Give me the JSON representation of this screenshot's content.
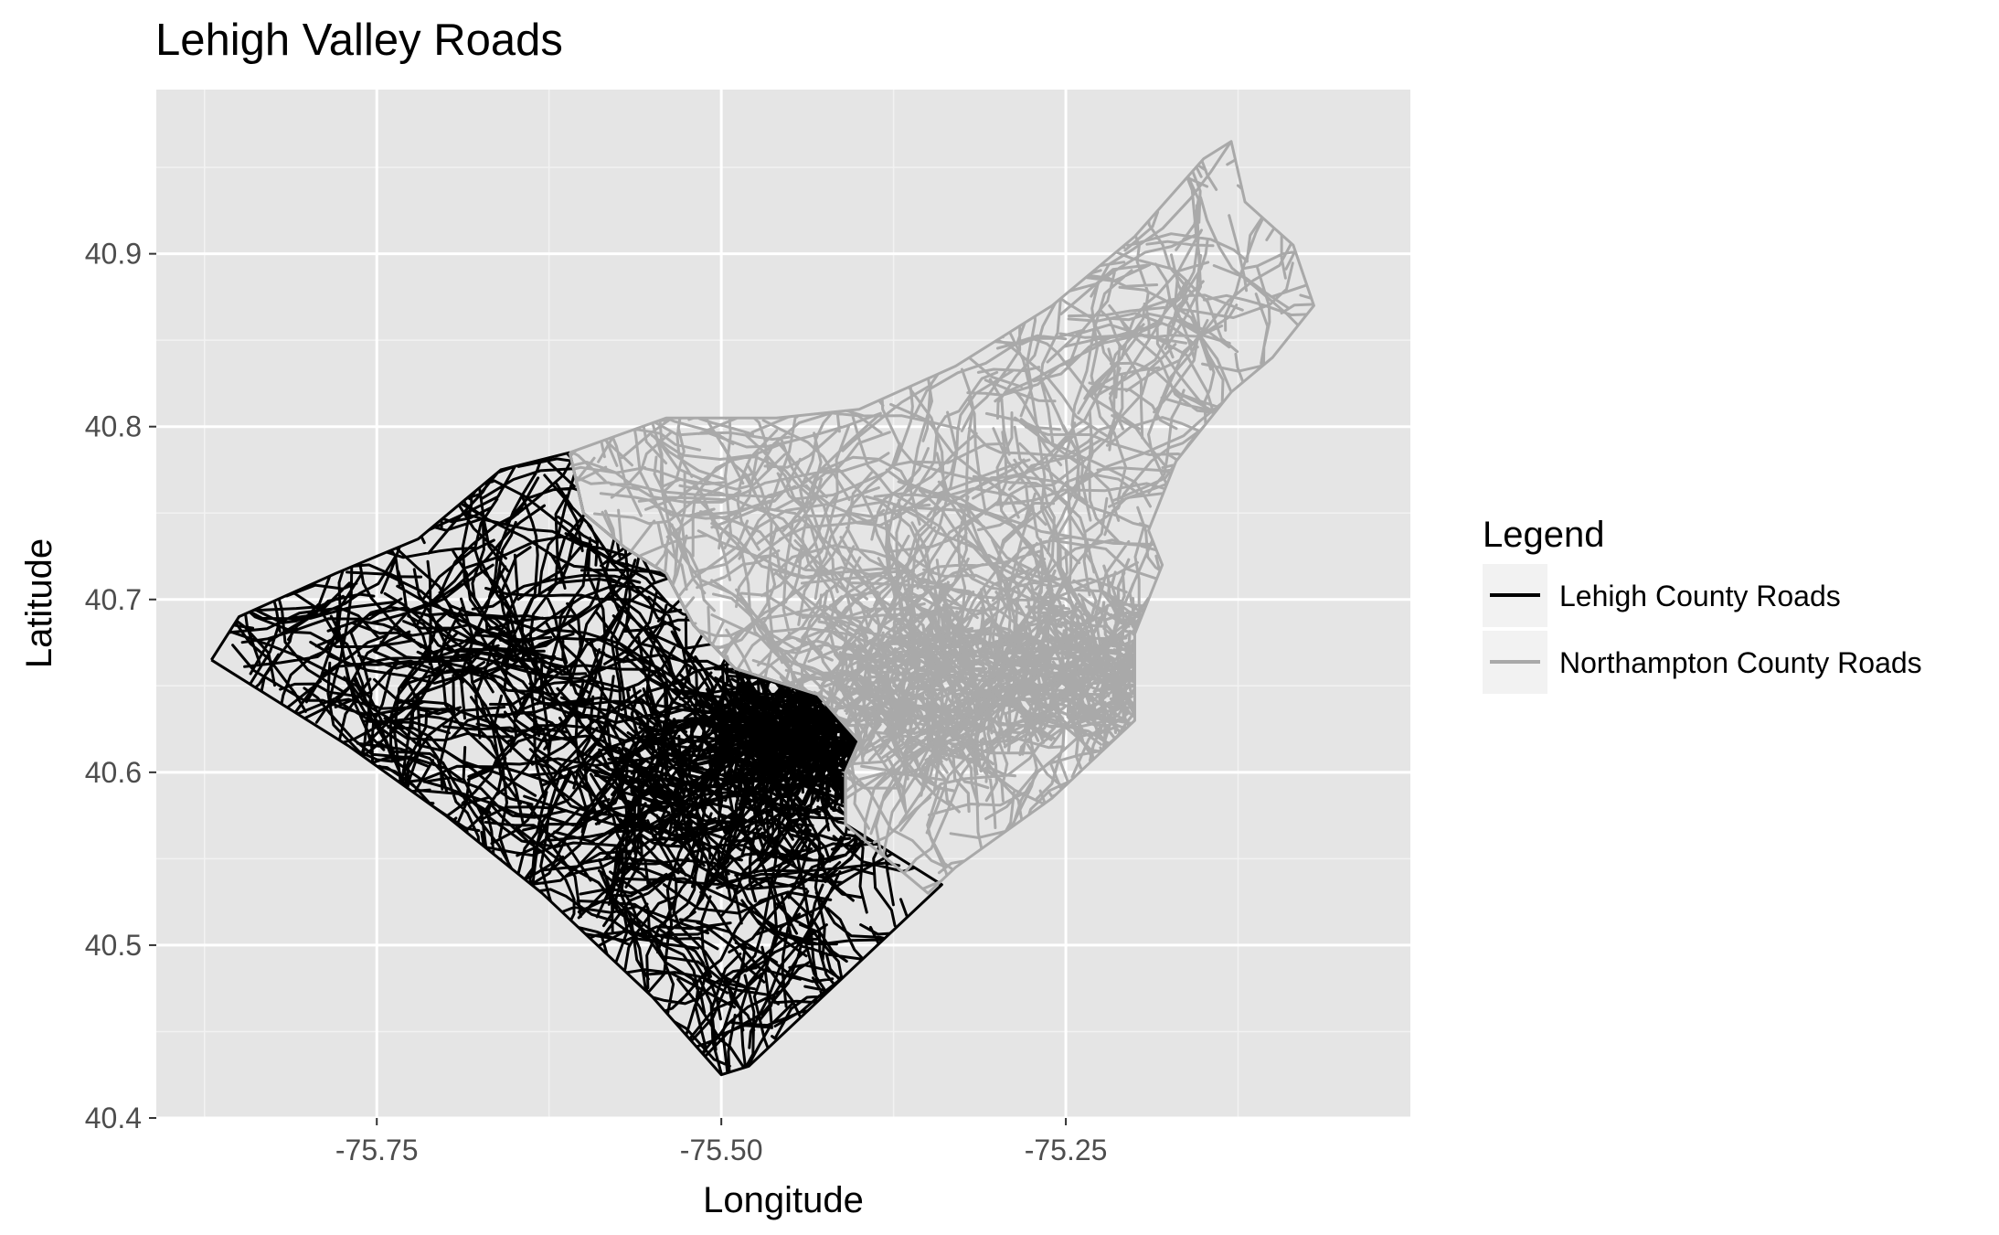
{
  "title": "Lehigh Valley Roads",
  "chart_data": {
    "type": "map",
    "title": "Lehigh Valley Roads",
    "xlabel": "Longitude",
    "ylabel": "Latitude",
    "xlim": [
      -75.91,
      -75.0
    ],
    "ylim": [
      40.4,
      40.995
    ],
    "x_ticks": [
      -75.75,
      -75.5,
      -75.25
    ],
    "x_tick_labels": [
      "-75.75",
      "-75.50",
      "-75.25"
    ],
    "x_minor": [
      -75.875,
      -75.625,
      -75.375,
      -75.125
    ],
    "y_ticks": [
      40.4,
      40.5,
      40.6,
      40.7,
      40.8,
      40.9
    ],
    "y_tick_labels": [
      "40.4",
      "40.5",
      "40.6",
      "40.7",
      "40.8",
      "40.9"
    ],
    "y_minor": [
      40.45,
      40.55,
      40.65,
      40.75,
      40.85,
      40.95
    ],
    "grid": true,
    "legend_position": "right",
    "legend": {
      "title": "Legend",
      "entries": [
        "Lehigh County Roads",
        "Northampton County Roads"
      ]
    },
    "series": [
      {
        "name": "Lehigh County Roads",
        "color": "#000000",
        "boundary": [
          [
            -75.87,
            40.665
          ],
          [
            -75.85,
            40.69
          ],
          [
            -75.78,
            40.715
          ],
          [
            -75.72,
            40.735
          ],
          [
            -75.66,
            40.775
          ],
          [
            -75.61,
            40.785
          ],
          [
            -75.6,
            40.75
          ],
          [
            -75.57,
            40.73
          ],
          [
            -75.54,
            40.715
          ],
          [
            -75.52,
            40.685
          ],
          [
            -75.49,
            40.66
          ],
          [
            -75.43,
            40.645
          ],
          [
            -75.4,
            40.618
          ],
          [
            -75.41,
            40.6
          ],
          [
            -75.41,
            40.57
          ],
          [
            -75.34,
            40.535
          ],
          [
            -75.48,
            40.43
          ],
          [
            -75.5,
            40.425
          ],
          [
            -75.55,
            40.47
          ],
          [
            -75.63,
            40.53
          ],
          [
            -75.7,
            40.575
          ],
          [
            -75.77,
            40.615
          ],
          [
            -75.83,
            40.645
          ],
          [
            -75.87,
            40.665
          ]
        ]
      },
      {
        "name": "Northampton County Roads",
        "color": "#a9a9a9",
        "boundary": [
          [
            -75.61,
            40.785
          ],
          [
            -75.54,
            40.805
          ],
          [
            -75.46,
            40.805
          ],
          [
            -75.4,
            40.81
          ],
          [
            -75.33,
            40.835
          ],
          [
            -75.26,
            40.87
          ],
          [
            -75.2,
            40.91
          ],
          [
            -75.15,
            40.955
          ],
          [
            -75.13,
            40.965
          ],
          [
            -75.12,
            40.93
          ],
          [
            -75.085,
            40.905
          ],
          [
            -75.07,
            40.87
          ],
          [
            -75.1,
            40.84
          ],
          [
            -75.13,
            40.82
          ],
          [
            -75.17,
            40.78
          ],
          [
            -75.19,
            40.74
          ],
          [
            -75.18,
            40.72
          ],
          [
            -75.2,
            40.68
          ],
          [
            -75.2,
            40.63
          ],
          [
            -75.26,
            40.585
          ],
          [
            -75.33,
            40.545
          ],
          [
            -75.35,
            40.53
          ],
          [
            -75.41,
            40.57
          ],
          [
            -75.41,
            40.6
          ],
          [
            -75.4,
            40.618
          ],
          [
            -75.43,
            40.645
          ],
          [
            -75.49,
            40.66
          ],
          [
            -75.52,
            40.685
          ],
          [
            -75.54,
            40.715
          ],
          [
            -75.57,
            40.73
          ],
          [
            -75.6,
            40.75
          ],
          [
            -75.61,
            40.785
          ]
        ]
      }
    ],
    "dense_areas": [
      {
        "series": "Lehigh County Roads",
        "center": [
          -75.49,
          40.6
        ],
        "radius": [
          0.09,
          0.045
        ]
      },
      {
        "series": "Lehigh County Roads",
        "center": [
          -75.44,
          40.625
        ],
        "radius": [
          0.05,
          0.02
        ]
      },
      {
        "series": "Northampton County Roads",
        "center": [
          -75.36,
          40.645
        ],
        "radius": [
          0.07,
          0.04
        ]
      },
      {
        "series": "Northampton County Roads",
        "center": [
          -75.24,
          40.66
        ],
        "radius": [
          0.06,
          0.035
        ]
      }
    ]
  }
}
